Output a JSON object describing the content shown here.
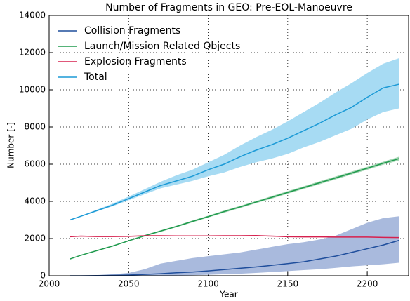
{
  "chart_data": {
    "type": "line",
    "title": "Number of Fragments in GEO: Pre-EOL-Manoeuvre",
    "x_label": "Year",
    "y_label": "Number [-]",
    "x": [
      2013,
      2020,
      2030,
      2040,
      2050,
      2060,
      2070,
      2080,
      2090,
      2100,
      2110,
      2120,
      2130,
      2140,
      2150,
      2160,
      2170,
      2180,
      2190,
      2200,
      2210,
      2220
    ],
    "series": [
      {
        "name": "Collision Fragments",
        "color": "#1f4e9c",
        "band_color": "#a9badd",
        "values": [
          0,
          0,
          10,
          20,
          40,
          70,
          110,
          160,
          200,
          260,
          330,
          400,
          470,
          560,
          650,
          750,
          900,
          1050,
          1250,
          1450,
          1650,
          1900
        ],
        "lower": [
          0,
          0,
          0,
          0,
          0,
          0,
          10,
          20,
          30,
          50,
          80,
          110,
          150,
          200,
          250,
          300,
          350,
          420,
          500,
          560,
          620,
          700
        ],
        "upper": [
          0,
          0,
          30,
          80,
          150,
          350,
          650,
          800,
          950,
          1050,
          1150,
          1250,
          1400,
          1550,
          1700,
          1800,
          1950,
          2150,
          2500,
          2850,
          3100,
          3200
        ]
      },
      {
        "name": "Launch/Mission Related Objects",
        "color": "#1f9a4d",
        "band_color": "#a5d6b4",
        "values": [
          900,
          1100,
          1350,
          1600,
          1880,
          2150,
          2400,
          2650,
          2920,
          3180,
          3450,
          3700,
          3960,
          4220,
          4480,
          4740,
          5000,
          5260,
          5520,
          5780,
          6050,
          6300
        ],
        "lower": [
          880,
          1080,
          1330,
          1580,
          1850,
          2110,
          2360,
          2610,
          2870,
          3130,
          3390,
          3640,
          3900,
          4150,
          4410,
          4670,
          4920,
          5180,
          5440,
          5700,
          5970,
          6200
        ],
        "upper": [
          920,
          1120,
          1370,
          1620,
          1910,
          2190,
          2440,
          2690,
          2970,
          3230,
          3510,
          3760,
          4020,
          4290,
          4550,
          4810,
          5080,
          5340,
          5600,
          5860,
          6130,
          6400
        ]
      },
      {
        "name": "Explosion Fragments",
        "color": "#d6204e",
        "band_color": "#f0a8ba",
        "values": [
          2100,
          2130,
          2110,
          2110,
          2120,
          2150,
          2150,
          2140,
          2140,
          2140,
          2150,
          2150,
          2160,
          2130,
          2100,
          2090,
          2090,
          2080,
          2080,
          2080,
          2060,
          2050
        ],
        "lower": [
          2080,
          2110,
          2090,
          2090,
          2100,
          2130,
          2130,
          2120,
          2120,
          2120,
          2130,
          2130,
          2140,
          2110,
          2080,
          2070,
          2070,
          2060,
          2060,
          2060,
          2040,
          2030
        ],
        "upper": [
          2120,
          2150,
          2130,
          2130,
          2140,
          2170,
          2170,
          2160,
          2160,
          2160,
          2170,
          2170,
          2180,
          2150,
          2120,
          2110,
          2110,
          2100,
          2100,
          2100,
          2080,
          2070
        ]
      },
      {
        "name": "Total",
        "color": "#1c9ad6",
        "band_color": "#a7dbf3",
        "values": [
          3000,
          3200,
          3500,
          3800,
          4150,
          4500,
          4850,
          5100,
          5350,
          5700,
          6000,
          6400,
          6750,
          7050,
          7400,
          7800,
          8200,
          8650,
          9050,
          9600,
          10100,
          10300
        ],
        "lower": [
          2980,
          3180,
          3460,
          3740,
          4060,
          4380,
          4700,
          4900,
          5100,
          5350,
          5550,
          5850,
          6100,
          6300,
          6550,
          6900,
          7200,
          7550,
          7900,
          8400,
          8800,
          9000
        ],
        "upper": [
          3020,
          3230,
          3550,
          3880,
          4260,
          4650,
          5050,
          5400,
          5700,
          6100,
          6500,
          7000,
          7450,
          7850,
          8300,
          8800,
          9300,
          9850,
          10350,
          10900,
          11400,
          11700
        ]
      }
    ],
    "xlim": [
      2000,
      2226
    ],
    "xticks": [
      2000,
      2050,
      2100,
      2150,
      2200
    ],
    "ylim": [
      0,
      14000
    ],
    "yticks": [
      0,
      2000,
      4000,
      6000,
      8000,
      10000,
      12000,
      14000
    ],
    "grid": true,
    "legend": "upper left"
  }
}
